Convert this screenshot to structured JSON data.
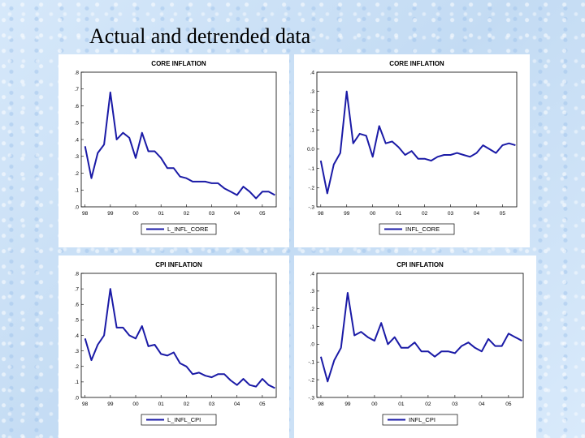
{
  "slide": {
    "title": "Actual and detrended data"
  },
  "chart_data": [
    {
      "type": "line",
      "title": "CORE INFLATION",
      "x": [
        1998.0,
        1998.25,
        1998.5,
        1998.75,
        1999.0,
        1999.25,
        1999.5,
        1999.75,
        2000.0,
        2000.25,
        2000.5,
        2000.75,
        2001.0,
        2001.25,
        2001.5,
        2001.75,
        2002.0,
        2002.25,
        2002.5,
        2002.75,
        2003.0,
        2003.25,
        2003.5,
        2003.75,
        2004.0,
        2004.25,
        2004.5,
        2004.75,
        2005.0,
        2005.25,
        2005.5
      ],
      "xticks": [
        "98",
        "99",
        "00",
        "01",
        "02",
        "03",
        "04",
        "05"
      ],
      "ylim": [
        0,
        0.8
      ],
      "yticks": [
        ".0",
        ".1",
        ".2",
        ".3",
        ".4",
        ".5",
        ".6",
        ".7",
        ".8"
      ],
      "series": [
        {
          "name": "L_INFL_CORE",
          "color": "#1a1aa6",
          "values": [
            0.36,
            0.17,
            0.32,
            0.37,
            0.68,
            0.4,
            0.44,
            0.41,
            0.29,
            0.44,
            0.33,
            0.33,
            0.29,
            0.23,
            0.23,
            0.18,
            0.17,
            0.15,
            0.15,
            0.15,
            0.14,
            0.14,
            0.11,
            0.09,
            0.07,
            0.12,
            0.09,
            0.05,
            0.09,
            0.09,
            0.07
          ]
        }
      ]
    },
    {
      "type": "line",
      "title": "CORE INFLATION",
      "x": [
        1998.0,
        1998.25,
        1998.5,
        1998.75,
        1999.0,
        1999.25,
        1999.5,
        1999.75,
        2000.0,
        2000.25,
        2000.5,
        2000.75,
        2001.0,
        2001.25,
        2001.5,
        2001.75,
        2002.0,
        2002.25,
        2002.5,
        2002.75,
        2003.0,
        2003.25,
        2003.5,
        2003.75,
        2004.0,
        2004.25,
        2004.5,
        2004.75,
        2005.0,
        2005.25,
        2005.5
      ],
      "xticks": [
        "98",
        "99",
        "00",
        "01",
        "02",
        "03",
        "04",
        "05"
      ],
      "ylim": [
        -0.3,
        0.4
      ],
      "yticks": [
        "-.3",
        "-.2",
        "-.1",
        "0.0",
        ".1",
        ".2",
        ".3",
        ".4"
      ],
      "series": [
        {
          "name": "INFL_CORE",
          "color": "#1a1aa6",
          "values": [
            -0.06,
            -0.23,
            -0.08,
            -0.02,
            0.3,
            0.03,
            0.08,
            0.07,
            -0.04,
            0.12,
            0.03,
            0.04,
            0.01,
            -0.03,
            -0.01,
            -0.05,
            -0.05,
            -0.06,
            -0.04,
            -0.03,
            -0.03,
            -0.02,
            -0.03,
            -0.04,
            -0.02,
            0.02,
            0.0,
            -0.02,
            0.02,
            0.03,
            0.02
          ]
        }
      ]
    },
    {
      "type": "line",
      "title": "CPI INFLATION",
      "x": [
        1998.0,
        1998.25,
        1998.5,
        1998.75,
        1999.0,
        1999.25,
        1999.5,
        1999.75,
        2000.0,
        2000.25,
        2000.5,
        2000.75,
        2001.0,
        2001.25,
        2001.5,
        2001.75,
        2002.0,
        2002.25,
        2002.5,
        2002.75,
        2003.0,
        2003.25,
        2003.5,
        2003.75,
        2004.0,
        2004.25,
        2004.5,
        2004.75,
        2005.0,
        2005.25,
        2005.5
      ],
      "xticks": [
        "98",
        "99",
        "00",
        "01",
        "02",
        "03",
        "04",
        "05"
      ],
      "ylim": [
        0,
        0.8
      ],
      "yticks": [
        ".0",
        ".1",
        ".2",
        ".3",
        ".4",
        ".5",
        ".6",
        ".7",
        ".8"
      ],
      "series": [
        {
          "name": "L_INFL_CPI",
          "color": "#1a1aa6",
          "values": [
            0.38,
            0.24,
            0.34,
            0.4,
            0.7,
            0.45,
            0.45,
            0.4,
            0.38,
            0.46,
            0.33,
            0.34,
            0.28,
            0.27,
            0.29,
            0.22,
            0.2,
            0.15,
            0.16,
            0.14,
            0.13,
            0.15,
            0.15,
            0.11,
            0.08,
            0.12,
            0.08,
            0.07,
            0.12,
            0.08,
            0.06
          ]
        }
      ]
    },
    {
      "type": "line",
      "title": "CPI INFLATION",
      "x": [
        1998.0,
        1998.25,
        1998.5,
        1998.75,
        1999.0,
        1999.25,
        1999.5,
        1999.75,
        2000.0,
        2000.25,
        2000.5,
        2000.75,
        2001.0,
        2001.25,
        2001.5,
        2001.75,
        2002.0,
        2002.25,
        2002.5,
        2002.75,
        2003.0,
        2003.25,
        2003.5,
        2003.75,
        2004.0,
        2004.25,
        2004.5,
        2004.75,
        2005.0,
        2005.25,
        2005.5
      ],
      "xticks": [
        "98",
        "99",
        "00",
        "01",
        "02",
        "03",
        "04",
        "05"
      ],
      "ylim": [
        -0.3,
        0.4
      ],
      "yticks": [
        "-.3",
        "-.2",
        "-.1",
        ".0",
        ".1",
        ".2",
        ".3",
        ".4"
      ],
      "series": [
        {
          "name": "INFL_CPI",
          "color": "#1a1aa6",
          "values": [
            -0.07,
            -0.21,
            -0.09,
            -0.02,
            0.29,
            0.05,
            0.07,
            0.04,
            0.02,
            0.12,
            0.0,
            0.04,
            -0.02,
            -0.02,
            0.01,
            -0.04,
            -0.04,
            -0.07,
            -0.04,
            -0.04,
            -0.05,
            -0.01,
            0.01,
            -0.02,
            -0.04,
            0.03,
            -0.01,
            -0.01,
            0.06,
            0.04,
            0.02
          ]
        }
      ]
    }
  ]
}
